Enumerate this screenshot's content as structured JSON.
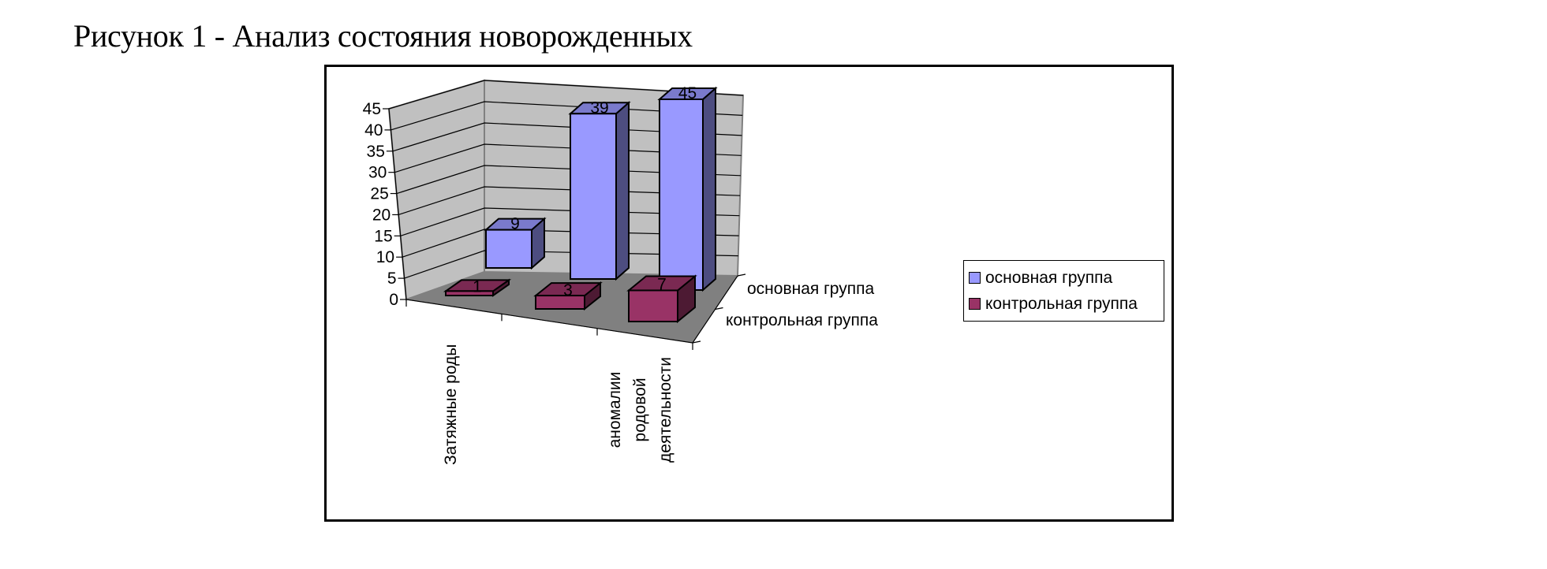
{
  "figure": {
    "caption": "Рисунок 1 - Анализ состояния новорожденных"
  },
  "colors": {
    "main_group_front": "#9999ff",
    "main_group_top": "#7a7acc",
    "main_group_side": "#4d4d80",
    "control_group_front": "#993366",
    "control_group_top": "#7a2952",
    "control_group_side": "#4d1a33",
    "walls": "#c0c0c0",
    "floor": "#808080"
  },
  "legend": {
    "items": [
      {
        "label": "основная группа",
        "color": "#9999ff"
      },
      {
        "label": "контрольная группа",
        "color": "#993366"
      }
    ]
  },
  "axes": {
    "y_ticks": [
      "0",
      "5",
      "10",
      "15",
      "20",
      "25",
      "30",
      "35",
      "40",
      "45"
    ],
    "depth_labels": [
      "основная группа",
      "контрольная группа"
    ],
    "category_labels": [
      [
        "Затяжные роды"
      ],
      [],
      [
        "аномалии",
        "родовой",
        "деятельности"
      ]
    ]
  },
  "chart_data": {
    "type": "bar",
    "subtype": "3d-column",
    "title": "Рисунок 1 - Анализ состояния новорожденных",
    "categories": [
      "Затяжные роды",
      "",
      "аномалии родовой деятельности"
    ],
    "series": [
      {
        "name": "основная группа",
        "values": [
          9,
          39,
          45
        ],
        "color": "#9999ff"
      },
      {
        "name": "контрольная группа",
        "values": [
          1,
          3,
          7
        ],
        "color": "#993366"
      }
    ],
    "data_labels": {
      "основная группа": [
        "9",
        "39",
        "45"
      ],
      "контрольная группа": [
        "1",
        "3",
        "7"
      ]
    },
    "xlabel": "",
    "ylabel": "",
    "ylim": [
      0,
      45
    ],
    "y_tick_step": 5,
    "grid": true,
    "legend_position": "right"
  }
}
